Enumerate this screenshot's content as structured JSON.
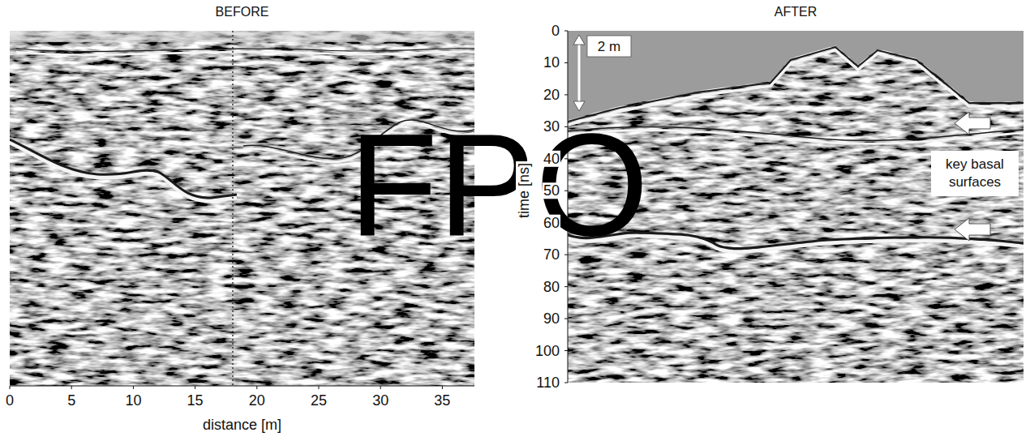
{
  "chart_data": [
    {
      "type": "radargram",
      "title": "BEFORE",
      "x_label": "distance [m]",
      "xlim": [
        0,
        37.6
      ],
      "xticks": [
        0,
        5,
        10,
        15,
        20,
        25,
        30,
        35
      ],
      "tick_labels": "x"
    },
    {
      "type": "radargram",
      "title": "AFTER",
      "y_label": "time [ns]",
      "ylim": [
        0,
        110
      ],
      "yticks": [
        0,
        10,
        20,
        30,
        40,
        50,
        60,
        70,
        80,
        90,
        100,
        110
      ],
      "tick_labels": "y",
      "annotations": [
        "2 m",
        "key basal surfaces"
      ]
    }
  ],
  "watermark": "FPO"
}
